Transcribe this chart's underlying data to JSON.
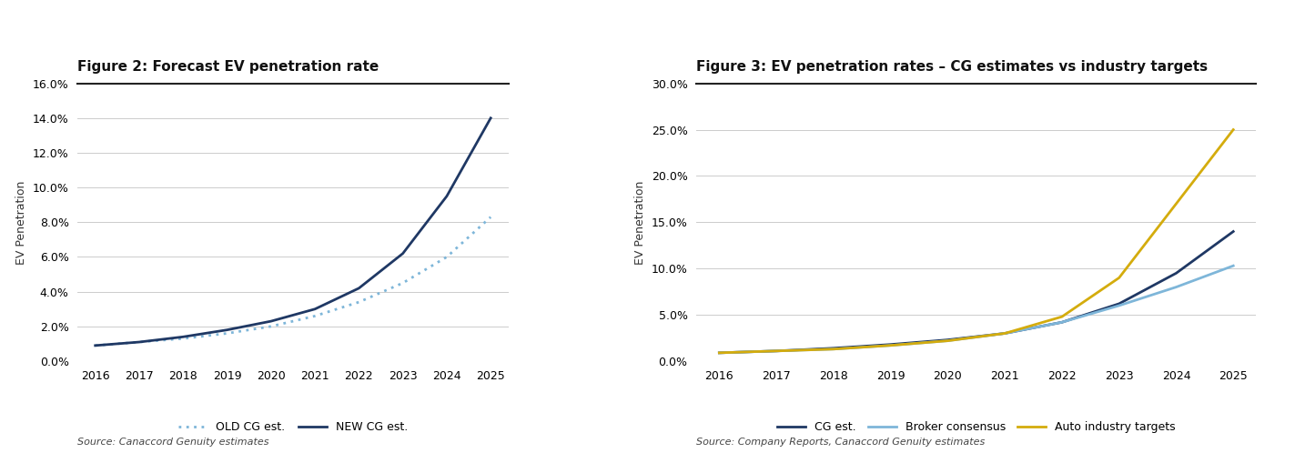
{
  "fig2_title": "Figure 2: Forecast EV penetration rate",
  "fig2_ylabel": "EV Penetration",
  "fig2_source": "Source: Canaccord Genuity estimates",
  "fig2_years": [
    2016,
    2017,
    2018,
    2019,
    2020,
    2021,
    2022,
    2023,
    2024,
    2025
  ],
  "fig2_old_cg": [
    0.009,
    0.011,
    0.013,
    0.016,
    0.02,
    0.026,
    0.034,
    0.045,
    0.06,
    0.083
  ],
  "fig2_new_cg": [
    0.009,
    0.011,
    0.014,
    0.018,
    0.023,
    0.03,
    0.042,
    0.062,
    0.095,
    0.14
  ],
  "fig2_old_color": "#7EB6D9",
  "fig2_new_color": "#1F3864",
  "fig2_ylim": [
    0.0,
    0.16
  ],
  "fig2_yticks": [
    0.0,
    0.02,
    0.04,
    0.06,
    0.08,
    0.1,
    0.12,
    0.14,
    0.16
  ],
  "fig3_title": "Figure 3: EV penetration rates – CG estimates vs industry targets",
  "fig3_ylabel": "EV Penetration",
  "fig3_source": "Source: Company Reports, Canaccord Genuity estimates",
  "fig3_years": [
    2016,
    2017,
    2018,
    2019,
    2020,
    2021,
    2022,
    2023,
    2024,
    2025
  ],
  "fig3_cg_est": [
    0.009,
    0.011,
    0.014,
    0.018,
    0.023,
    0.03,
    0.042,
    0.062,
    0.095,
    0.14
  ],
  "fig3_broker": [
    0.009,
    0.011,
    0.013,
    0.017,
    0.022,
    0.03,
    0.042,
    0.06,
    0.08,
    0.103
  ],
  "fig3_auto": [
    0.009,
    0.011,
    0.013,
    0.017,
    0.022,
    0.03,
    0.048,
    0.09,
    0.17,
    0.25
  ],
  "fig3_cg_color": "#1F3864",
  "fig3_broker_color": "#7EB6D9",
  "fig3_auto_color": "#D4AC0D",
  "fig3_ylim": [
    0.0,
    0.3
  ],
  "fig3_yticks": [
    0.0,
    0.05,
    0.1,
    0.15,
    0.2,
    0.25,
    0.3
  ],
  "background_color": "#FFFFFF",
  "grid_color": "#CCCCCC",
  "title_fontsize": 11,
  "label_fontsize": 9,
  "tick_fontsize": 9,
  "source_fontsize": 8,
  "legend_fontsize": 9,
  "line_width": 2.0,
  "divider_color": "#222222",
  "legend_old_label": "OLD CG est.",
  "legend_new_label": "NEW CG est.",
  "legend_cg_label": "CG est.",
  "legend_broker_label": "Broker consensus",
  "legend_auto_label": "Auto industry targets"
}
